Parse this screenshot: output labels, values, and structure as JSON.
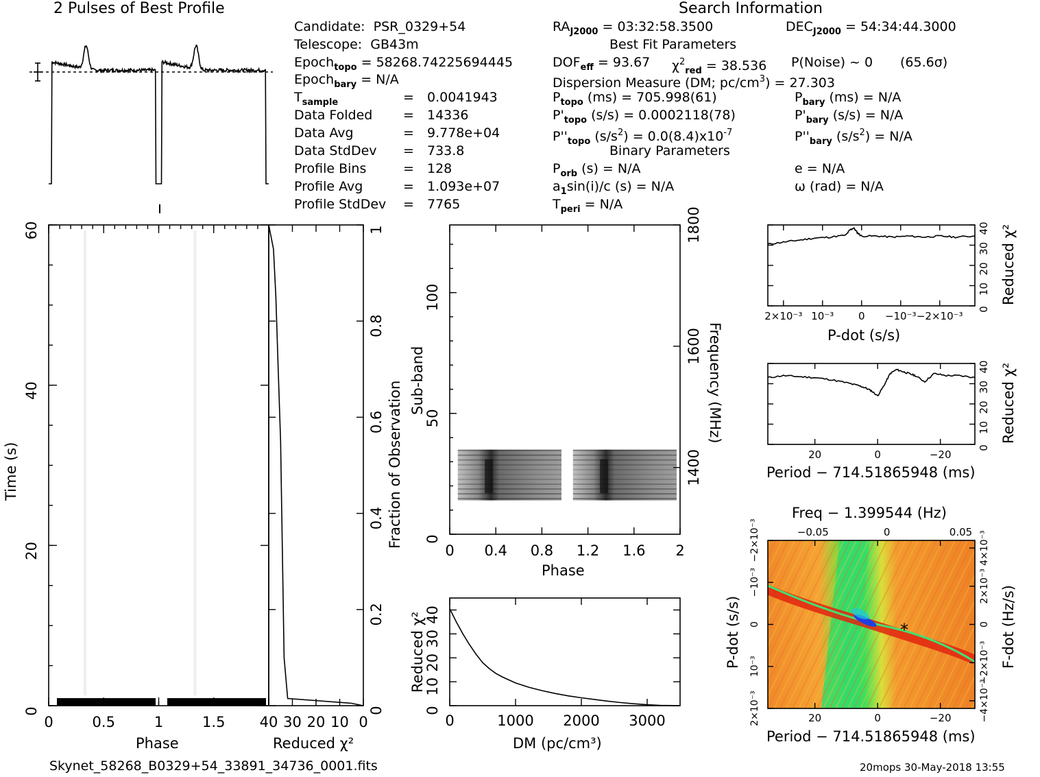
{
  "header": {
    "profile_title": "2 Pulses of Best Profile",
    "search_title": "Search Information",
    "best_fit_title": "Best Fit Parameters",
    "binary_title": "Binary Parameters"
  },
  "info": {
    "candidate_label": "Candidate:",
    "candidate": "PSR_0329+54",
    "telescope_label": "Telescope:",
    "telescope": "GB43m",
    "epoch_topo_label": "Epoch",
    "epoch_topo_sub": "topo",
    "epoch_topo": "= 58268.74225694445",
    "epoch_bary_label": "Epoch",
    "epoch_bary_sub": "bary",
    "epoch_bary": "= N/A",
    "tsample_label": "T",
    "tsample_sub": "sample",
    "tsample": "0.0041943",
    "data_folded_label": "Data Folded",
    "data_folded": "14336",
    "data_avg_label": "Data Avg",
    "data_avg": "9.778e+04",
    "data_std_label": "Data StdDev",
    "data_std": "733.8",
    "profile_bins_label": "Profile Bins",
    "profile_bins": "128",
    "profile_avg_label": "Profile Avg",
    "profile_avg": "1.093e+07",
    "profile_std_label": "Profile StdDev",
    "profile_std": "7765",
    "eq": "="
  },
  "search": {
    "ra_label": "RA",
    "ra_sub": "J2000",
    "ra": "= 03:32:58.3500",
    "dec_label": "DEC",
    "dec_sub": "J2000",
    "dec": "= 54:34:44.3000",
    "dof_label": "DOF",
    "dof_sub": "eff",
    "dof": "= 93.67",
    "chi_label": "χ",
    "chi_sup": "2",
    "chi_sub": "red",
    "chi": "= 38.536",
    "pnoise": "P(Noise) ~ 0",
    "sigma": "(65.6σ)",
    "dm_text": "Dispersion Measure (DM; pc/cm",
    "dm_sup": "3",
    "dm_val": ") = 27.303",
    "ptopo_label": "P",
    "ptopo_sub": "topo",
    "ptopo": "(ms) =  705.998(61)",
    "pbary_label": "P",
    "pbary_sub": "bary",
    "pbary": "(ms) = N/A",
    "pdtopo_label": "P'",
    "pdtopo_sub": "topo",
    "pdtopo": "(s/s) =  0.0002118(78)",
    "pdbary_label": "P'",
    "pdbary_sub": "bary",
    "pdbary": "(s/s) = N/A",
    "pddtopo_label": "P''",
    "pddtopo_sub": "topo",
    "pddtopo_a": "(s/s",
    "pddtopo_sup": "2",
    "pddtopo_b": ") = 0.0(8.4)x10",
    "pddtopo_sup2": "-7",
    "pddbary_label": "P''",
    "pddbary_sub": "bary",
    "pddbary_a": "(s/s",
    "pddbary_sup": "2",
    "pddbary_b": ") = N/A",
    "porb_label": "P",
    "porb_sub": "orb",
    "porb": "(s) = N/A",
    "ecc": "e = N/A",
    "a1_label": "a",
    "a1_sub": "1",
    "a1": "sin(i)/c (s) = N/A",
    "omega": "ω (rad) = N/A",
    "tperi_label": "T",
    "tperi_sub": "peri",
    "tperi": "= N/A"
  },
  "footer": {
    "filename": "Skynet_58268_B0329+54_33891_34736_0001.fits",
    "stamp": "20mops 30-May-2018 13:55"
  },
  "chart_data": [
    {
      "id": "profile",
      "type": "line",
      "title": "2 Pulses of Best Profile",
      "xlim": [
        0,
        2
      ],
      "profile_shape": {
        "on_start": 0.03,
        "on_end": 0.97,
        "peak_phase": 0.34,
        "baseline": 0.12,
        "plateau": 0.72,
        "peak": 0.93,
        "dip": 0.03
      }
    },
    {
      "id": "time-phase",
      "type": "heatmap",
      "xlabel": "Phase",
      "ylabel": "Time (s)",
      "xlim": [
        0,
        2
      ],
      "ylim": [
        0,
        60
      ],
      "xticks": [
        "0",
        "0.5",
        "1",
        "1.5"
      ],
      "yticks": [
        "0",
        "20",
        "40",
        "60"
      ]
    },
    {
      "id": "chi-vs-fraction",
      "type": "line",
      "xlabel": "Reduced χ²",
      "ylabel": "Fraction of Observation",
      "xlim": [
        40,
        0
      ],
      "ylim": [
        0,
        1
      ],
      "xticks": [
        "40",
        "30",
        "20",
        "10",
        "0"
      ],
      "yticks": [
        "0",
        "0.2",
        "0.4",
        "0.6",
        "0.8",
        "1"
      ],
      "x": [
        40,
        38,
        37,
        36,
        35,
        34.5,
        34,
        33.5,
        32,
        5,
        0
      ],
      "y": [
        1,
        0.95,
        0.85,
        0.7,
        0.55,
        0.4,
        0.25,
        0.1,
        0.015,
        0.005,
        0
      ]
    },
    {
      "id": "subband-phase",
      "type": "heatmap",
      "xlabel": "Phase",
      "ylabel": "Sub-band",
      "y2label": "Frequency (MHz)",
      "xlim": [
        0,
        2
      ],
      "ylim": [
        0,
        128
      ],
      "y2lim": [
        1290,
        1800
      ],
      "xticks": [
        "0",
        "0.4",
        "0.8",
        "1.2",
        "1.6",
        "2"
      ],
      "yticks": [
        "0",
        "50",
        "100"
      ],
      "y2ticks": [
        "1400",
        "1600",
        "1800"
      ],
      "band_rows": [
        14,
        35
      ],
      "peak_phase": 0.34
    },
    {
      "id": "dm-chi",
      "type": "line",
      "xlabel": "DM (pc/cm³)",
      "ylabel": "Reduced χ²",
      "xlim": [
        0,
        3500
      ],
      "ylim": [
        0,
        45
      ],
      "xticks": [
        "0",
        "1000",
        "2000",
        "3000"
      ],
      "yticks": [
        "0",
        "10",
        "20",
        "30",
        "40"
      ],
      "x": [
        0,
        100,
        200,
        300,
        400,
        500,
        600,
        700,
        800,
        1000,
        1200,
        1400,
        1600,
        1800,
        2000,
        2200,
        2400,
        2600,
        2800,
        3000,
        3200,
        3400,
        3500
      ],
      "y": [
        40.5,
        35,
        30,
        25.5,
        21.5,
        18,
        15.5,
        13.5,
        12,
        9.5,
        7.7,
        6.3,
        5.1,
        4.1,
        3.3,
        2.6,
        1.9,
        1.3,
        0.8,
        0.4,
        0.15,
        0.05,
        0
      ]
    },
    {
      "id": "pdot-chi",
      "type": "line",
      "xlabel": "P-dot (s/s)",
      "ylabel": "Reduced χ²",
      "xlim": [
        0.0024,
        -0.0029
      ],
      "ylim": [
        0,
        40
      ],
      "xticks": [
        "2×10⁻³",
        "10⁻³",
        "0",
        "−10⁻³",
        "−2×10⁻³"
      ],
      "yticks": [
        "0",
        "10",
        "20",
        "30",
        "40"
      ],
      "x": [
        0.0024,
        0.002,
        0.0016,
        0.0012,
        0.0008,
        0.0004,
        0.0003,
        0.0002,
        0.0001,
        0,
        -0.0004,
        -0.0008,
        -0.0012,
        -0.0016,
        -0.002,
        -0.0024,
        -0.0029
      ],
      "y": [
        30.5,
        31.5,
        32.5,
        33.5,
        34,
        35,
        37.5,
        38.5,
        36,
        34.5,
        34.5,
        34,
        34.5,
        34,
        34.5,
        34,
        34.5
      ]
    },
    {
      "id": "period-chi",
      "type": "line",
      "xlabel": "Period − 714.51865948 (ms)",
      "ylabel": "Reduced χ²",
      "xlim": [
        35,
        -31
      ],
      "ylim": [
        0,
        40
      ],
      "xticks": [
        "20",
        "0",
        "−20"
      ],
      "yticks": [
        "0",
        "10",
        "20",
        "30",
        "40"
      ],
      "x": [
        35,
        30,
        25,
        20,
        15,
        10,
        6,
        4,
        2,
        0,
        -2,
        -4,
        -6,
        -8,
        -10,
        -12,
        -15,
        -18,
        -22,
        -26,
        -31
      ],
      "y": [
        33,
        34,
        33.5,
        33,
        32,
        30.5,
        29,
        28,
        26.5,
        24,
        29,
        35,
        37,
        36,
        35,
        34,
        31,
        35,
        34,
        34,
        33
      ]
    },
    {
      "id": "period-pdot",
      "type": "heatmap",
      "title": "Freq − 1.399544 (Hz)",
      "xlabel": "Period − 714.51865948 (ms)",
      "ylabel": "P-dot (s/s)",
      "y2label": "F-dot (Hz/s)",
      "xlim": [
        35,
        -31
      ],
      "ylim": [
        0.002,
        -0.002
      ],
      "xticks": [
        "20",
        "0",
        "−20"
      ],
      "x2ticks": [
        "−0.05",
        "0",
        "0.05"
      ],
      "yticks": [
        "2×10⁻³",
        "10⁻³",
        "0",
        "−10⁻³",
        "−2×10⁻³"
      ],
      "y2ticks": [
        "−4×10⁻³",
        "−2×10⁻³",
        "0",
        "2×10⁻³",
        "4×10⁻³"
      ],
      "best": {
        "period": -8.5,
        "pdot": 0.0001
      }
    }
  ]
}
